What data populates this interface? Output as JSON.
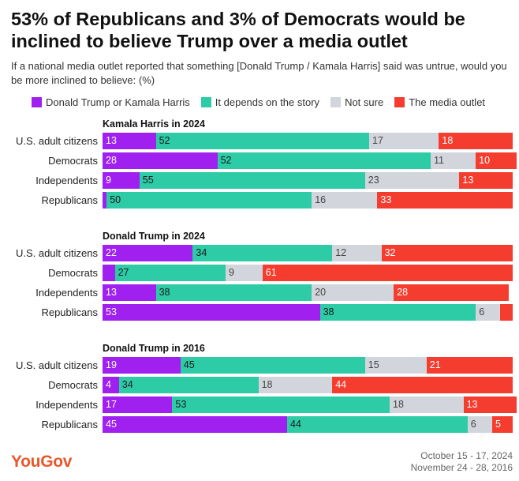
{
  "title": "53% of Republicans and 3% of Democrats would be inclined to believe Trump over a media outlet",
  "subtitle": "If a national media outlet reported that something [Donald Trump / Kamala Harris] said was untrue, would you be more inclined to believe: (%)",
  "legend": [
    {
      "label": "Donald Trump or Kamala Harris",
      "color": "#a020f0"
    },
    {
      "label": "It depends on the story",
      "color": "#2ecba7"
    },
    {
      "label": "Not sure",
      "color": "#d3d5dc"
    },
    {
      "label": "The media outlet",
      "color": "#f53d2f"
    }
  ],
  "brand": "YouGov",
  "dates": [
    "October 15 - 17, 2024",
    "November 24 - 28, 2016"
  ],
  "chart_data": {
    "type": "bar",
    "orientation": "horizontal",
    "stacked": true,
    "xlim": [
      0,
      100
    ],
    "series_names": [
      "Donald Trump or Kamala Harris",
      "It depends on the story",
      "Not sure",
      "The media outlet"
    ],
    "groups": [
      {
        "title": "Kamala Harris in 2024",
        "rows": [
          {
            "label": "U.S. adult citizens",
            "values": [
              13,
              52,
              17,
              18
            ],
            "labels": [
              "13",
              "52",
              "17",
              "18"
            ]
          },
          {
            "label": "Democrats",
            "values": [
              28,
              52,
              11,
              10
            ],
            "labels": [
              "28",
              "52",
              "11",
              "10"
            ]
          },
          {
            "label": "Independents",
            "values": [
              9,
              55,
              23,
              13
            ],
            "labels": [
              "9",
              "55",
              "23",
              "13"
            ]
          },
          {
            "label": "Republicans",
            "values": [
              1,
              50,
              16,
              33
            ],
            "labels": [
              "",
              "50",
              "16",
              "33"
            ]
          }
        ]
      },
      {
        "title": "Donald Trump in 2024",
        "rows": [
          {
            "label": "U.S. adult citizens",
            "values": [
              22,
              34,
              12,
              32
            ],
            "labels": [
              "22",
              "34",
              "12",
              "32"
            ]
          },
          {
            "label": "Democrats",
            "values": [
              3,
              27,
              9,
              61
            ],
            "labels": [
              "",
              "27",
              "9",
              "61"
            ]
          },
          {
            "label": "Independents",
            "values": [
              13,
              38,
              20,
              28
            ],
            "labels": [
              "13",
              "38",
              "20",
              "28"
            ]
          },
          {
            "label": "Republicans",
            "values": [
              53,
              38,
              6,
              3
            ],
            "labels": [
              "53",
              "38",
              "6",
              ""
            ]
          }
        ]
      },
      {
        "title": "Donald Trump in 2016",
        "rows": [
          {
            "label": "U.S. adult citizens",
            "values": [
              19,
              45,
              15,
              21
            ],
            "labels": [
              "19",
              "45",
              "15",
              "21"
            ]
          },
          {
            "label": "Democrats",
            "values": [
              4,
              34,
              18,
              44
            ],
            "labels": [
              "4",
              "34",
              "18",
              "44"
            ]
          },
          {
            "label": "Independents",
            "values": [
              17,
              53,
              18,
              13
            ],
            "labels": [
              "17",
              "53",
              "18",
              "13"
            ]
          },
          {
            "label": "Republicans",
            "values": [
              45,
              44,
              6,
              5
            ],
            "labels": [
              "45",
              "44",
              "6",
              "5"
            ]
          }
        ]
      }
    ]
  }
}
